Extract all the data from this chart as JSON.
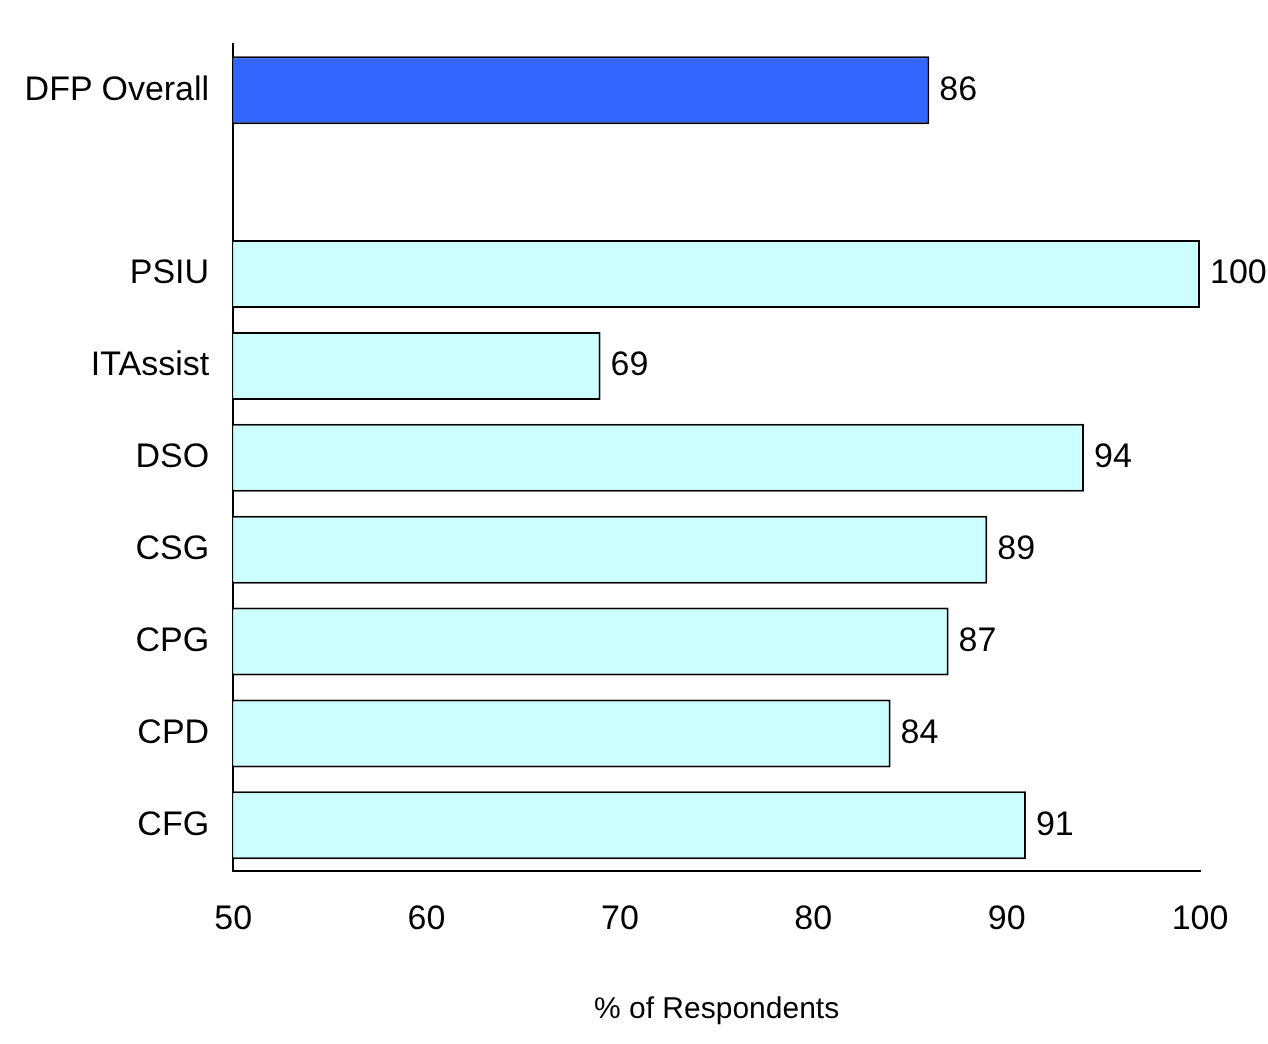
{
  "chart_data": {
    "type": "bar",
    "orientation": "horizontal",
    "categories": [
      "DFP Overall",
      null,
      "PSIU",
      "ITAssist",
      "DSO",
      "CSG",
      "CPG",
      "CPD",
      "CFG"
    ],
    "values": [
      86,
      null,
      100,
      69,
      94,
      89,
      87,
      84,
      91
    ],
    "colors": [
      "#3366ff",
      null,
      "#ccffff",
      "#ccffff",
      "#ccffff",
      "#ccffff",
      "#ccffff",
      "#ccffff",
      "#ccffff"
    ],
    "xlim": [
      50,
      100
    ],
    "xticks": [
      50,
      60,
      70,
      80,
      90,
      100
    ],
    "xlabel": "% of Respondents",
    "data_labels": true,
    "grid": false,
    "legend": false
  }
}
